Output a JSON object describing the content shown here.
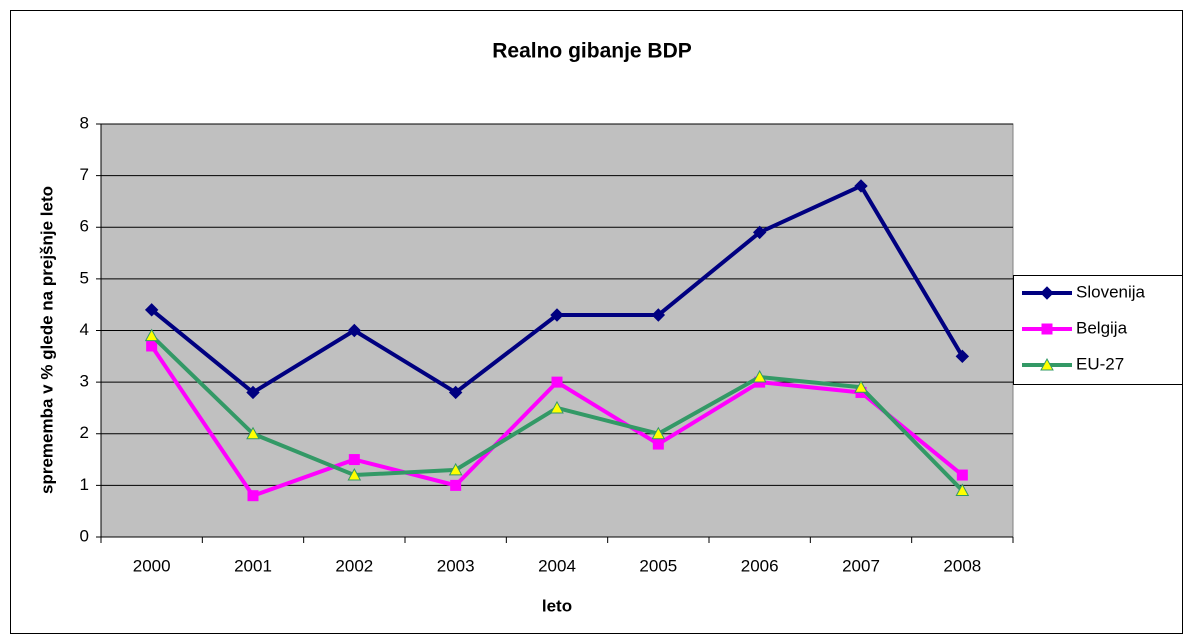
{
  "chart_data": {
    "type": "line",
    "title": "Realno gibanje BDP",
    "x_label": "leto",
    "y_label": "sprememba v % glede na prejšnje leto",
    "categories": [
      "2000",
      "2001",
      "2002",
      "2003",
      "2004",
      "2005",
      "2006",
      "2007",
      "2008"
    ],
    "series": [
      {
        "name": "Slovenija",
        "color": "#000080",
        "marker": "diamond",
        "values": [
          4.4,
          2.8,
          4.0,
          2.8,
          4.3,
          4.3,
          5.9,
          6.8,
          3.5
        ]
      },
      {
        "name": "Belgija",
        "color": "#ff00ff",
        "marker": "square",
        "values": [
          3.7,
          0.8,
          1.5,
          1.0,
          3.0,
          1.8,
          3.0,
          2.8,
          1.2
        ]
      },
      {
        "name": "EU-27",
        "color": "#339966",
        "marker": "triangle",
        "marker_fill": "#ffff00",
        "values": [
          3.9,
          2.0,
          1.2,
          1.3,
          2.5,
          2.0,
          3.1,
          2.9,
          0.9
        ]
      }
    ],
    "ylim": [
      0,
      8
    ],
    "yticks": [
      0,
      1,
      2,
      3,
      4,
      5,
      6,
      7,
      8
    ],
    "grid": true,
    "legend": "right"
  }
}
